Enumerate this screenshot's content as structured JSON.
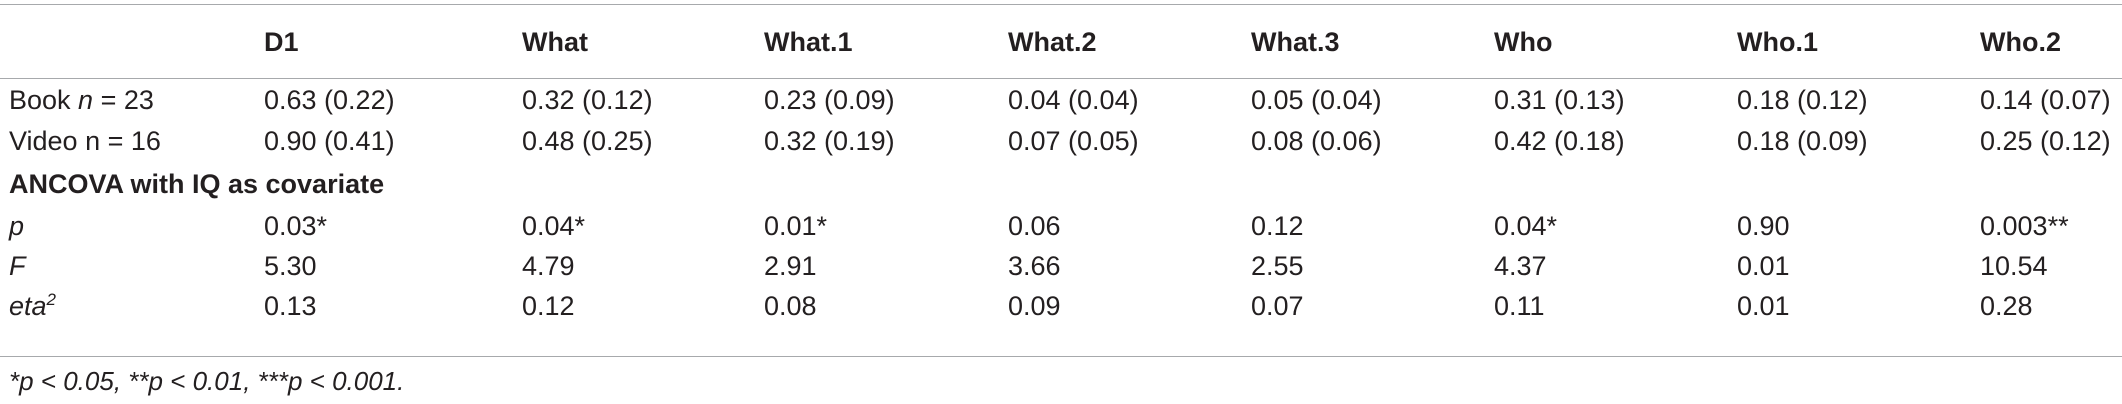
{
  "table": {
    "columns": [
      "",
      "D1",
      "What",
      "What.1",
      "What.2",
      "What.3",
      "Who",
      "Who.1",
      "Who.2"
    ],
    "groups": [
      {
        "label_prefix": "Book ",
        "label_n": "n",
        "label_suffix": " = 23",
        "values": [
          "0.63 (0.22)",
          "0.32 (0.12)",
          "0.23 (0.09)",
          "0.04 (0.04)",
          "0.05 (0.04)",
          "0.31 (0.13)",
          "0.18 (0.12)",
          "0.14 (0.07)"
        ]
      },
      {
        "label_prefix": "Video n = 16",
        "label_n": "",
        "label_suffix": "",
        "values": [
          "0.90 (0.41)",
          "0.48 (0.25)",
          "0.32 (0.19)",
          "0.07 (0.05)",
          "0.08 (0.06)",
          "0.42 (0.18)",
          "0.18 (0.09)",
          "0.25 (0.12)"
        ]
      }
    ],
    "section_title": "ANCOVA with IQ as covariate",
    "stats": [
      {
        "label": "p",
        "sup": "",
        "values": [
          "0.03*",
          "0.04*",
          "0.01*",
          "0.06",
          "0.12",
          "0.04*",
          "0.90",
          "0.003**"
        ]
      },
      {
        "label": "F",
        "sup": "",
        "values": [
          "5.30",
          "4.79",
          "2.91",
          "3.66",
          "2.55",
          "4.37",
          "0.01",
          "10.54"
        ]
      },
      {
        "label": "eta",
        "sup": "2",
        "values": [
          "0.13",
          "0.12",
          "0.08",
          "0.09",
          "0.07",
          "0.11",
          "0.01",
          "0.28"
        ]
      }
    ]
  },
  "footnote": "*p < 0.05, **p < 0.01, ***p < 0.001."
}
